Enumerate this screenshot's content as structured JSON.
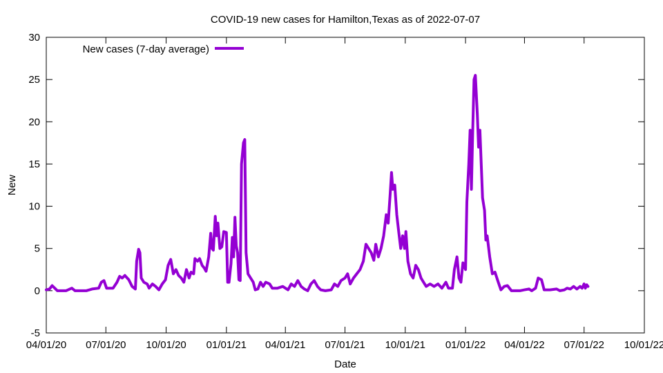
{
  "chart_data": {
    "type": "line",
    "title": "COVID-19 new cases for Hamilton,Texas as of 2022-07-07",
    "xlabel": "Date",
    "ylabel": "New",
    "x_ticks": [
      "04/01/20",
      "07/01/20",
      "10/01/20",
      "01/01/21",
      "04/01/21",
      "07/01/21",
      "10/01/21",
      "01/01/22",
      "04/01/22",
      "07/01/22",
      "10/01/22"
    ],
    "y_ticks": [
      "-5",
      "0",
      "5",
      "10",
      "15",
      "20",
      "25",
      "30"
    ],
    "ylim": [
      -5,
      30
    ],
    "xlim": [
      "2020-04-01",
      "2022-10-01"
    ],
    "grid": false,
    "legend_position": "top-left",
    "series": [
      {
        "name": "New cases (7-day average)",
        "color": "#9400D3",
        "points": [
          [
            "2020-04-01",
            0.1
          ],
          [
            "2020-04-06",
            0.2
          ],
          [
            "2020-04-10",
            0.6
          ],
          [
            "2020-04-14",
            0.3
          ],
          [
            "2020-04-18",
            0.0
          ],
          [
            "2020-05-01",
            0.0
          ],
          [
            "2020-05-10",
            0.3
          ],
          [
            "2020-05-15",
            0.0
          ],
          [
            "2020-06-01",
            0.0
          ],
          [
            "2020-06-10",
            0.2
          ],
          [
            "2020-06-20",
            0.3
          ],
          [
            "2020-06-24",
            1.0
          ],
          [
            "2020-06-28",
            1.2
          ],
          [
            "2020-07-02",
            0.3
          ],
          [
            "2020-07-12",
            0.3
          ],
          [
            "2020-07-18",
            1.0
          ],
          [
            "2020-07-22",
            1.7
          ],
          [
            "2020-07-26",
            1.5
          ],
          [
            "2020-07-30",
            1.8
          ],
          [
            "2020-08-05",
            1.3
          ],
          [
            "2020-08-10",
            0.5
          ],
          [
            "2020-08-15",
            0.2
          ],
          [
            "2020-08-17",
            3.5
          ],
          [
            "2020-08-20",
            4.9
          ],
          [
            "2020-08-22",
            4.5
          ],
          [
            "2020-08-24",
            1.5
          ],
          [
            "2020-08-28",
            1.0
          ],
          [
            "2020-09-02",
            0.8
          ],
          [
            "2020-09-05",
            0.3
          ],
          [
            "2020-09-10",
            0.8
          ],
          [
            "2020-09-15",
            0.5
          ],
          [
            "2020-09-20",
            0.1
          ],
          [
            "2020-09-25",
            0.8
          ],
          [
            "2020-09-30",
            1.3
          ],
          [
            "2020-10-04",
            3.0
          ],
          [
            "2020-10-08",
            3.7
          ],
          [
            "2020-10-12",
            2.0
          ],
          [
            "2020-10-16",
            2.5
          ],
          [
            "2020-10-20",
            1.8
          ],
          [
            "2020-10-24",
            1.5
          ],
          [
            "2020-10-28",
            1.0
          ],
          [
            "2020-11-01",
            2.5
          ],
          [
            "2020-11-05",
            1.5
          ],
          [
            "2020-11-08",
            2.2
          ],
          [
            "2020-11-12",
            2.0
          ],
          [
            "2020-11-14",
            3.8
          ],
          [
            "2020-11-18",
            3.5
          ],
          [
            "2020-11-21",
            3.8
          ],
          [
            "2020-11-25",
            3.0
          ],
          [
            "2020-11-28",
            2.7
          ],
          [
            "2020-12-01",
            2.3
          ],
          [
            "2020-12-05",
            4.0
          ],
          [
            "2020-12-08",
            6.8
          ],
          [
            "2020-12-10",
            5.0
          ],
          [
            "2020-12-12",
            4.8
          ],
          [
            "2020-12-15",
            8.8
          ],
          [
            "2020-12-17",
            6.5
          ],
          [
            "2020-12-19",
            8.0
          ],
          [
            "2020-12-22",
            5.0
          ],
          [
            "2020-12-25",
            5.2
          ],
          [
            "2020-12-28",
            7.0
          ],
          [
            "2021-01-01",
            6.9
          ],
          [
            "2021-01-03",
            1.0
          ],
          [
            "2021-01-05",
            1.0
          ],
          [
            "2021-01-08",
            3.2
          ],
          [
            "2021-01-10",
            6.3
          ],
          [
            "2021-01-12",
            4.0
          ],
          [
            "2021-01-14",
            8.7
          ],
          [
            "2021-01-16",
            5.3
          ],
          [
            "2021-01-18",
            4.5
          ],
          [
            "2021-01-20",
            1.3
          ],
          [
            "2021-01-22",
            1.2
          ],
          [
            "2021-01-24",
            15.0
          ],
          [
            "2021-01-27",
            17.5
          ],
          [
            "2021-01-29",
            17.9
          ],
          [
            "2021-01-31",
            4.5
          ],
          [
            "2021-02-03",
            2.0
          ],
          [
            "2021-02-07",
            1.5
          ],
          [
            "2021-02-11",
            1.0
          ],
          [
            "2021-02-14",
            0.1
          ],
          [
            "2021-02-18",
            0.2
          ],
          [
            "2021-02-22",
            1.0
          ],
          [
            "2021-02-26",
            0.5
          ],
          [
            "2021-03-02",
            1.0
          ],
          [
            "2021-03-08",
            0.8
          ],
          [
            "2021-03-12",
            0.3
          ],
          [
            "2021-03-20",
            0.3
          ],
          [
            "2021-03-28",
            0.5
          ],
          [
            "2021-04-05",
            0.1
          ],
          [
            "2021-04-10",
            0.8
          ],
          [
            "2021-04-15",
            0.5
          ],
          [
            "2021-04-20",
            1.2
          ],
          [
            "2021-04-25",
            0.5
          ],
          [
            "2021-04-30",
            0.2
          ],
          [
            "2021-05-05",
            0.0
          ],
          [
            "2021-05-10",
            0.8
          ],
          [
            "2021-05-15",
            1.2
          ],
          [
            "2021-05-20",
            0.5
          ],
          [
            "2021-05-25",
            0.1
          ],
          [
            "2021-06-01",
            0.0
          ],
          [
            "2021-06-10",
            0.1
          ],
          [
            "2021-06-15",
            0.8
          ],
          [
            "2021-06-20",
            0.5
          ],
          [
            "2021-06-25",
            1.2
          ],
          [
            "2021-07-01",
            1.5
          ],
          [
            "2021-07-05",
            2.0
          ],
          [
            "2021-07-09",
            0.8
          ],
          [
            "2021-07-14",
            1.5
          ],
          [
            "2021-07-19",
            2.0
          ],
          [
            "2021-07-24",
            2.5
          ],
          [
            "2021-07-29",
            3.5
          ],
          [
            "2021-08-02",
            5.5
          ],
          [
            "2021-08-06",
            5.0
          ],
          [
            "2021-08-10",
            4.5
          ],
          [
            "2021-08-14",
            3.6
          ],
          [
            "2021-08-17",
            5.5
          ],
          [
            "2021-08-21",
            4.0
          ],
          [
            "2021-08-25",
            5.0
          ],
          [
            "2021-08-29",
            6.5
          ],
          [
            "2021-09-02",
            9.0
          ],
          [
            "2021-09-05",
            8.0
          ],
          [
            "2021-09-08",
            11.5
          ],
          [
            "2021-09-10",
            14.0
          ],
          [
            "2021-09-12",
            12.0
          ],
          [
            "2021-09-15",
            12.5
          ],
          [
            "2021-09-18",
            9.0
          ],
          [
            "2021-09-21",
            7.0
          ],
          [
            "2021-09-24",
            5.0
          ],
          [
            "2021-09-27",
            6.5
          ],
          [
            "2021-09-30",
            5.0
          ],
          [
            "2021-10-02",
            7.0
          ],
          [
            "2021-10-05",
            3.5
          ],
          [
            "2021-10-09",
            2.0
          ],
          [
            "2021-10-13",
            1.5
          ],
          [
            "2021-10-17",
            3.0
          ],
          [
            "2021-10-21",
            2.5
          ],
          [
            "2021-10-25",
            1.5
          ],
          [
            "2021-10-29",
            1.0
          ],
          [
            "2021-11-02",
            0.5
          ],
          [
            "2021-11-08",
            0.8
          ],
          [
            "2021-11-14",
            0.5
          ],
          [
            "2021-11-20",
            0.8
          ],
          [
            "2021-11-26",
            0.3
          ],
          [
            "2021-12-02",
            1.0
          ],
          [
            "2021-12-06",
            0.3
          ],
          [
            "2021-12-12",
            0.3
          ],
          [
            "2021-12-15",
            2.5
          ],
          [
            "2021-12-19",
            4.0
          ],
          [
            "2021-12-22",
            1.5
          ],
          [
            "2021-12-25",
            1.0
          ],
          [
            "2021-12-28",
            3.3
          ],
          [
            "2022-01-01",
            2.5
          ],
          [
            "2022-01-03",
            10.5
          ],
          [
            "2022-01-06",
            15.0
          ],
          [
            "2022-01-08",
            19.0
          ],
          [
            "2022-01-10",
            12.0
          ],
          [
            "2022-01-12",
            19.0
          ],
          [
            "2022-01-14",
            25.0
          ],
          [
            "2022-01-16",
            25.5
          ],
          [
            "2022-01-19",
            21.0
          ],
          [
            "2022-01-21",
            17.0
          ],
          [
            "2022-01-23",
            19.0
          ],
          [
            "2022-01-25",
            15.0
          ],
          [
            "2022-01-27",
            11.0
          ],
          [
            "2022-01-30",
            9.5
          ],
          [
            "2022-02-01",
            6.0
          ],
          [
            "2022-02-03",
            6.5
          ],
          [
            "2022-02-07",
            4.0
          ],
          [
            "2022-02-11",
            2.0
          ],
          [
            "2022-02-15",
            2.2
          ],
          [
            "2022-02-20",
            1.0
          ],
          [
            "2022-02-24",
            0.1
          ],
          [
            "2022-03-01",
            0.5
          ],
          [
            "2022-03-06",
            0.6
          ],
          [
            "2022-03-12",
            0.0
          ],
          [
            "2022-03-25",
            0.0
          ],
          [
            "2022-04-01",
            0.1
          ],
          [
            "2022-04-08",
            0.2
          ],
          [
            "2022-04-12",
            0.0
          ],
          [
            "2022-04-18",
            0.3
          ],
          [
            "2022-04-22",
            1.5
          ],
          [
            "2022-04-27",
            1.3
          ],
          [
            "2022-05-01",
            0.1
          ],
          [
            "2022-05-10",
            0.1
          ],
          [
            "2022-05-20",
            0.2
          ],
          [
            "2022-05-25",
            0.0
          ],
          [
            "2022-06-01",
            0.1
          ],
          [
            "2022-06-05",
            0.3
          ],
          [
            "2022-06-10",
            0.2
          ],
          [
            "2022-06-15",
            0.5
          ],
          [
            "2022-06-20",
            0.2
          ],
          [
            "2022-06-25",
            0.5
          ],
          [
            "2022-06-28",
            0.3
          ],
          [
            "2022-07-01",
            0.8
          ],
          [
            "2022-07-03",
            0.3
          ],
          [
            "2022-07-05",
            0.7
          ],
          [
            "2022-07-07",
            0.5
          ]
        ]
      }
    ]
  }
}
